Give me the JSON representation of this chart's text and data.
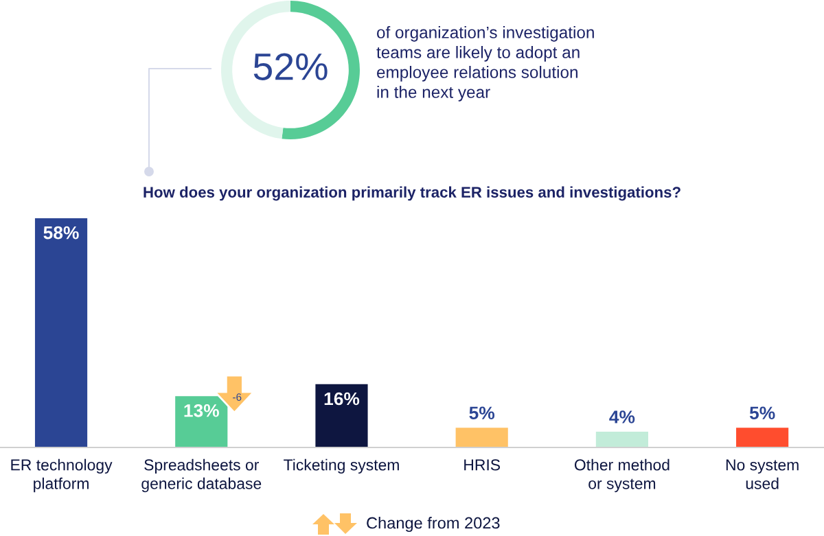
{
  "chart_data": [
    {
      "type": "donut",
      "categories": [
        null,
        null
      ],
      "values": [
        52,
        48
      ],
      "colors": [
        "#57cc96",
        "#e0f5ec"
      ],
      "value_labels": [
        "52%",
        null
      ],
      "annotations": [
        "of organization’s investigation\nteams are likely to adopt an\nemployee relations solution\nin the next year"
      ]
    },
    {
      "type": "bar",
      "title": "How does your organization primarily track ER issues and investigations?",
      "categories": [
        "ER technology\nplatform",
        "Spreadsheets or\ngeneric database",
        "Ticketing system",
        "HRIS",
        "Other method\nor system",
        "No system\nused"
      ],
      "values": [
        58,
        13,
        16,
        5,
        4,
        5
      ],
      "colors": [
        "#2b4594",
        "#57cc96",
        "#0e1640",
        "#ffc266",
        "#c2ecd9",
        "#ff4d2e"
      ],
      "value_labels": [
        "58%",
        "13%",
        "16%",
        "5%",
        "4%",
        "5%"
      ],
      "annotations": [
        {
          "text": "-6",
          "x": "Spreadsheets or\ngeneric database",
          "y": 13
        },
        "Change from 2023"
      ]
    }
  ]
}
